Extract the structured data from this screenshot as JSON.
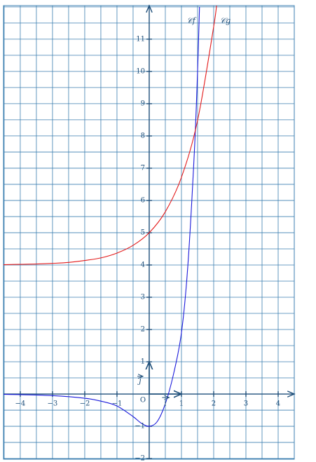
{
  "chart_data": {
    "type": "line",
    "xlim": [
      -4.52,
      4.5
    ],
    "ylim": [
      -2.02,
      12.04
    ],
    "xticks": [
      {
        "value": -4,
        "label": "−4"
      },
      {
        "value": -3,
        "label": "−3"
      },
      {
        "value": -2,
        "label": "−2"
      },
      {
        "value": -1,
        "label": "−1"
      },
      1,
      2,
      3,
      4
    ],
    "yticks": [
      {
        "value": -2,
        "label": "−2"
      },
      {
        "value": -1,
        "label": "−1"
      },
      1,
      2,
      3,
      4,
      5,
      6,
      7,
      8,
      9,
      10,
      11
    ],
    "grid": true,
    "grid_step": 0.5,
    "origin_label": "O",
    "i_label": "i",
    "j_label": "j",
    "series": [
      {
        "name": "𝒞f",
        "color": "#1a1adb",
        "x": [
          -4.52,
          -4,
          -3,
          -2,
          -1.5,
          -1,
          -0.5,
          -0.25,
          0,
          0.25,
          0.5,
          0.75,
          1,
          1.2,
          1.4,
          1.5,
          1.56
        ],
        "values": [
          -0.01,
          -0.02,
          -0.05,
          -0.13,
          -0.22,
          -0.37,
          -0.7,
          -0.9,
          -1,
          -0.85,
          -0.3,
          0.6,
          1.9,
          4,
          7.5,
          10,
          12
        ]
      },
      {
        "name": "𝒞g",
        "color": "#e31a1a",
        "x": [
          -4.52,
          -4,
          -3.5,
          -3,
          -2.5,
          -2,
          -1.5,
          -1,
          -0.5,
          0,
          0.5,
          1,
          1.5,
          2,
          2.1
        ],
        "values": [
          4.01,
          4.02,
          4.03,
          4.05,
          4.08,
          4.14,
          4.22,
          4.37,
          4.61,
          5,
          5.65,
          6.72,
          8.48,
          11.39,
          12.17
        ]
      }
    ]
  }
}
